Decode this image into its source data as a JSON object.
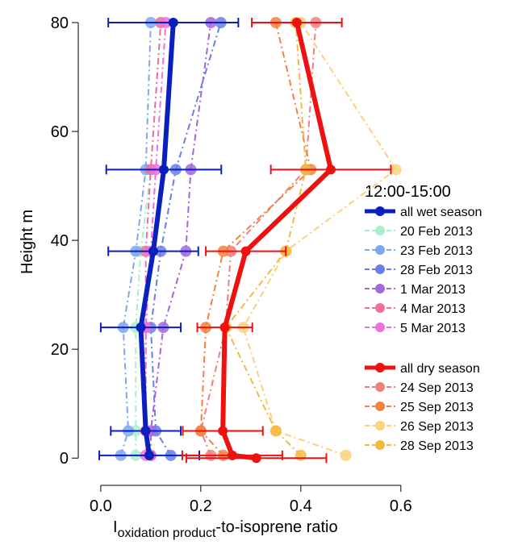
{
  "chart_data": {
    "type": "profile",
    "ylabel": "Height m",
    "xlabel": {
      "main": "I",
      "sub": "oxidation product",
      "rest": "-to-isoprene ratio"
    },
    "legend_title": "12:00-15:00",
    "xlim": [
      -0.045,
      0.71
    ],
    "ylim": [
      -5,
      80
    ],
    "xticks": [
      {
        "value": 0,
        "label": "0.0"
      },
      0.2,
      0.4,
      0.6
    ],
    "yticks": [
      0,
      20,
      40,
      60,
      80
    ],
    "heights": [
      0,
      0.5,
      5,
      24,
      38,
      53,
      80
    ],
    "series": [
      {
        "name": "all wet season",
        "color": "#0a1fbf",
        "style": "solid",
        "values": [
          null,
          0.097,
          0.09,
          0.08,
          0.105,
          0.126,
          0.145
        ],
        "errors": [
          null,
          0.1,
          0.07,
          0.08,
          0.09,
          0.115,
          0.13
        ]
      },
      {
        "name": "20 Feb 2013",
        "color": "#a8f0cc",
        "style": "dashdot",
        "values": [
          null,
          0.07,
          0.07,
          0.07,
          0.08,
          0.1,
          0.12
        ]
      },
      {
        "name": "23 Feb 2013",
        "color": "#7fa6f2",
        "style": "dashdot",
        "values": [
          null,
          0.04,
          0.055,
          0.045,
          0.07,
          0.09,
          0.1
        ]
      },
      {
        "name": "28 Feb 2013",
        "color": "#6a7fe6",
        "style": "dashdot",
        "values": [
          null,
          0.14,
          0.11,
          0.1,
          0.12,
          0.15,
          0.24
        ]
      },
      {
        "name": "1 Mar 2013",
        "color": "#a367dc",
        "style": "dashdot",
        "values": [
          null,
          0.1,
          0.1,
          0.125,
          0.17,
          0.18,
          0.22
        ]
      },
      {
        "name": "4 Mar 2013",
        "color": "#f06fa0",
        "style": "dashdot",
        "values": [
          null,
          0.1,
          0.09,
          0.09,
          0.09,
          0.1,
          0.12
        ]
      },
      {
        "name": "5 Mar 2013",
        "color": "#f06fe0",
        "style": "dashdot",
        "values": [
          null,
          0.09,
          0.09,
          0.09,
          0.1,
          0.11,
          0.13
        ]
      },
      {
        "name": "all dry season",
        "color": "#ee1111",
        "style": "solid",
        "values": [
          0.311,
          0.263,
          0.244,
          0.248,
          0.29,
          0.46,
          0.392
        ],
        "errors": [
          0.14,
          0.1,
          0.08,
          0.055,
          0.08,
          0.12,
          0.09
        ]
      },
      {
        "name": "24 Sep 2013",
        "color": "#f08080",
        "style": "dashdot",
        "values": [
          null,
          0.22,
          0.2,
          0.25,
          0.26,
          0.41,
          0.43
        ]
      },
      {
        "name": "25 Sep 2013",
        "color": "#f4813f",
        "style": "dashdot",
        "values": [
          null,
          0.245,
          0.2,
          0.21,
          0.245,
          0.42,
          0.35
        ]
      },
      {
        "name": "26 Sep 2013",
        "color": "#fdd07a",
        "style": "dashdot",
        "values": [
          null,
          0.49,
          0.35,
          0.285,
          0.37,
          0.59,
          0.4
        ]
      },
      {
        "name": "28 Sep 2013",
        "color": "#f5b942",
        "style": "dashdot",
        "values": [
          null,
          0.4,
          0.35,
          0.25,
          0.37,
          0.41,
          0.39
        ]
      }
    ]
  }
}
